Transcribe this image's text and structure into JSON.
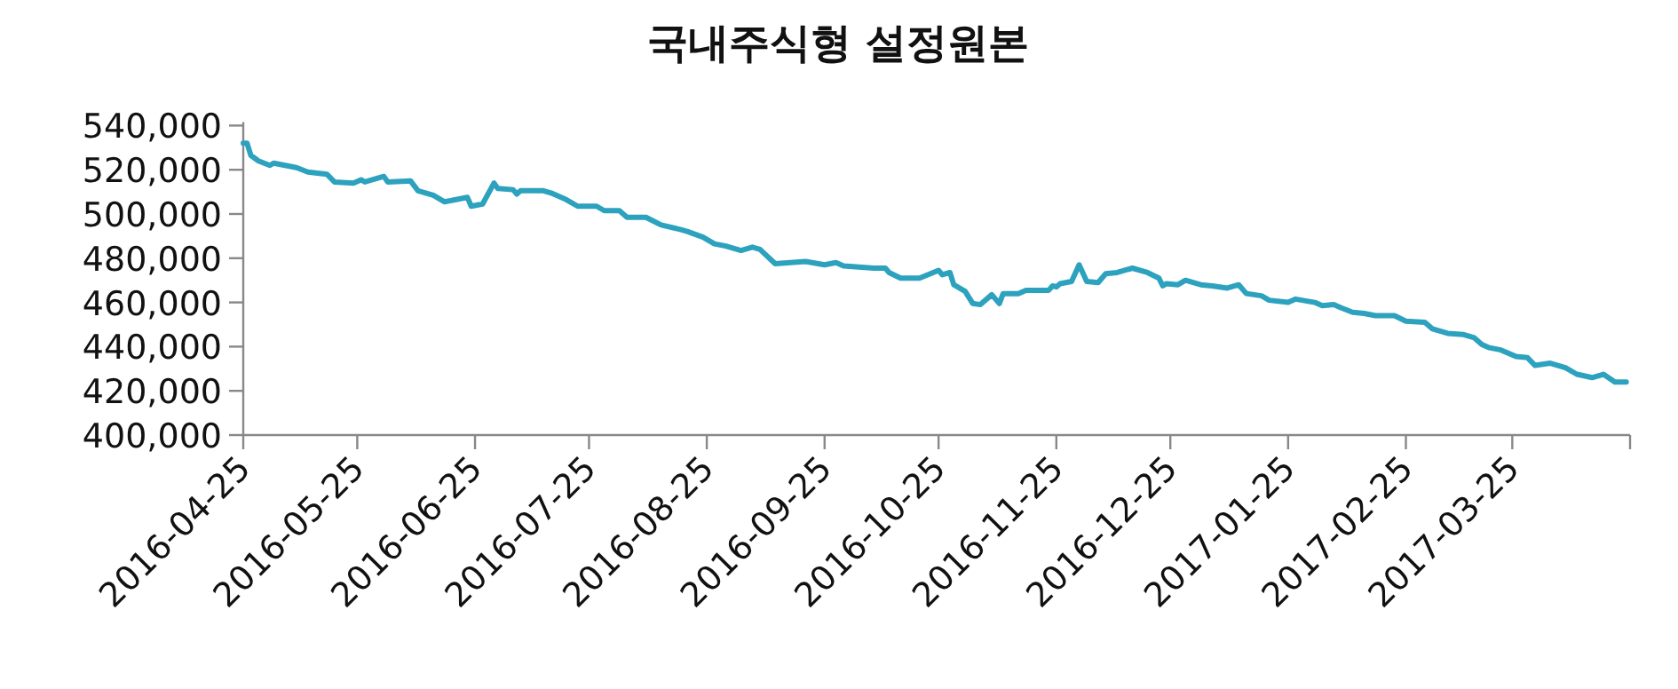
{
  "chart_data": {
    "type": "line",
    "title": "국내주식형 설정원본",
    "x": [
      "2016-04-25",
      "2016-04-26",
      "2016-04-27",
      "2016-04-29",
      "2016-05-02",
      "2016-05-03",
      "2016-05-09",
      "2016-05-12",
      "2016-05-17",
      "2016-05-19",
      "2016-05-24",
      "2016-05-26",
      "2016-05-27",
      "2016-06-01",
      "2016-06-02",
      "2016-06-08",
      "2016-06-10",
      "2016-06-14",
      "2016-06-17",
      "2016-06-23",
      "2016-06-24",
      "2016-06-27",
      "2016-06-30",
      "2016-07-01",
      "2016-07-05",
      "2016-07-06",
      "2016-07-07",
      "2016-07-13",
      "2016-07-15",
      "2016-07-19",
      "2016-07-22",
      "2016-07-27",
      "2016-07-29",
      "2016-08-02",
      "2016-08-04",
      "2016-08-09",
      "2016-08-13",
      "2016-08-18",
      "2016-08-20",
      "2016-08-24",
      "2016-08-27",
      "2016-08-30",
      "2016-09-03",
      "2016-09-06",
      "2016-09-08",
      "2016-09-12",
      "2016-09-20",
      "2016-09-25",
      "2016-09-28",
      "2016-09-30",
      "2016-10-08",
      "2016-10-11",
      "2016-10-12",
      "2016-10-15",
      "2016-10-20",
      "2016-10-25",
      "2016-10-26",
      "2016-10-28",
      "2016-10-29",
      "2016-11-01",
      "2016-11-03",
      "2016-11-05",
      "2016-11-08",
      "2016-11-10",
      "2016-11-11",
      "2016-11-15",
      "2016-11-17",
      "2016-11-23",
      "2016-11-24",
      "2016-11-25",
      "2016-11-26",
      "2016-11-29",
      "2016-12-01",
      "2016-12-03",
      "2016-12-06",
      "2016-12-08",
      "2016-12-11",
      "2016-12-15",
      "2016-12-19",
      "2016-12-22",
      "2016-12-23",
      "2016-12-24",
      "2016-12-27",
      "2016-12-29",
      "2017-01-02",
      "2017-01-05",
      "2017-01-09",
      "2017-01-12",
      "2017-01-14",
      "2017-01-18",
      "2017-01-20",
      "2017-01-25",
      "2017-01-27",
      "2017-02-01",
      "2017-02-03",
      "2017-02-06",
      "2017-02-08",
      "2017-02-11",
      "2017-02-14",
      "2017-02-17",
      "2017-02-22",
      "2017-02-25",
      "2017-03-02",
      "2017-03-04",
      "2017-03-08",
      "2017-03-12",
      "2017-03-15",
      "2017-03-17",
      "2017-03-19",
      "2017-03-22",
      "2017-03-26",
      "2017-03-29",
      "2017-03-31",
      "2017-04-04",
      "2017-04-08",
      "2017-04-11",
      "2017-04-15",
      "2017-04-18",
      "2017-04-21",
      "2017-04-24"
    ],
    "values": [
      532000,
      532000,
      526500,
      524000,
      522000,
      523000,
      521000,
      519000,
      518000,
      514500,
      514000,
      515500,
      514500,
      517000,
      514500,
      515000,
      510500,
      508500,
      505500,
      507500,
      503500,
      504500,
      514000,
      511500,
      511000,
      509000,
      510500,
      510500,
      509500,
      506500,
      503500,
      503500,
      501500,
      501500,
      498500,
      498500,
      495000,
      493000,
      492000,
      489500,
      486500,
      485500,
      483500,
      485000,
      484000,
      477500,
      478500,
      477000,
      478000,
      476500,
      475500,
      475500,
      473500,
      471000,
      471000,
      474500,
      472500,
      473500,
      468000,
      465000,
      459500,
      459000,
      463500,
      459500,
      464000,
      464000,
      465500,
      465500,
      467500,
      467000,
      468500,
      469500,
      477000,
      469500,
      469000,
      473000,
      473500,
      475500,
      473500,
      471000,
      467500,
      468500,
      468000,
      470000,
      468000,
      467500,
      466500,
      468000,
      464000,
      463000,
      461000,
      460000,
      461500,
      460000,
      458500,
      459000,
      457500,
      455500,
      455000,
      454000,
      454000,
      451500,
      451000,
      448000,
      446000,
      445500,
      444000,
      441000,
      439500,
      438500,
      435500,
      435000,
      431500,
      432500,
      430500,
      427500,
      426000,
      427500,
      424000,
      424000
    ],
    "color": "#2ca2be",
    "xlim": [
      "2016-04-25",
      "2017-04-25"
    ],
    "xticks": [
      "2016-04-25",
      "2016-05-25",
      "2016-06-25",
      "2016-07-25",
      "2016-08-25",
      "2016-09-25",
      "2016-10-25",
      "2016-11-25",
      "2016-12-25",
      "2017-01-25",
      "2017-02-25",
      "2017-03-25",
      {
        "value": "2017-04-25",
        "label": null
      }
    ],
    "ylim": [
      400000,
      540000
    ],
    "yticks": [
      {
        "value": 400000,
        "label": "400,000"
      },
      {
        "value": 420000,
        "label": "420,000"
      },
      {
        "value": 440000,
        "label": "440,000"
      },
      {
        "value": 460000,
        "label": "460,000"
      },
      {
        "value": 480000,
        "label": "480,000"
      },
      {
        "value": 500000,
        "label": "500,000"
      },
      {
        "value": 520000,
        "label": "520,000"
      },
      {
        "value": 540000,
        "label": "540,000"
      }
    ]
  }
}
